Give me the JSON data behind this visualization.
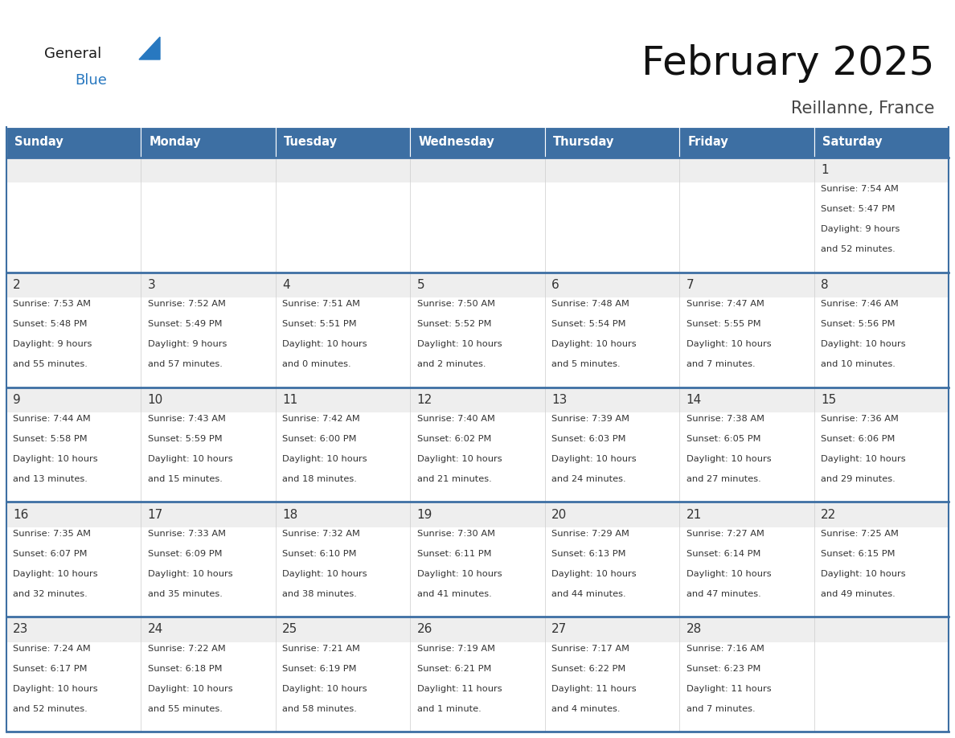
{
  "title": "February 2025",
  "subtitle": "Reillanne, France",
  "header_bg_color": "#3d6fa3",
  "header_text_color": "#ffffff",
  "cell_bg_number": "#eeeeee",
  "cell_bg_text": "#ffffff",
  "row_separator_color": "#3d6fa3",
  "col_separator_color": "#cccccc",
  "text_color": "#333333",
  "days_of_week": [
    "Sunday",
    "Monday",
    "Tuesday",
    "Wednesday",
    "Thursday",
    "Friday",
    "Saturday"
  ],
  "logo_general_color": "#1a1a1a",
  "logo_blue_color": "#2878c0",
  "calendar_data": [
    [
      null,
      null,
      null,
      null,
      null,
      null,
      {
        "day": 1,
        "sunrise": "7:54 AM",
        "sunset": "5:47 PM",
        "daylight": "9 hours and 52 minutes."
      }
    ],
    [
      {
        "day": 2,
        "sunrise": "7:53 AM",
        "sunset": "5:48 PM",
        "daylight": "9 hours and 55 minutes."
      },
      {
        "day": 3,
        "sunrise": "7:52 AM",
        "sunset": "5:49 PM",
        "daylight": "9 hours and 57 minutes."
      },
      {
        "day": 4,
        "sunrise": "7:51 AM",
        "sunset": "5:51 PM",
        "daylight": "10 hours and 0 minutes."
      },
      {
        "day": 5,
        "sunrise": "7:50 AM",
        "sunset": "5:52 PM",
        "daylight": "10 hours and 2 minutes."
      },
      {
        "day": 6,
        "sunrise": "7:48 AM",
        "sunset": "5:54 PM",
        "daylight": "10 hours and 5 minutes."
      },
      {
        "day": 7,
        "sunrise": "7:47 AM",
        "sunset": "5:55 PM",
        "daylight": "10 hours and 7 minutes."
      },
      {
        "day": 8,
        "sunrise": "7:46 AM",
        "sunset": "5:56 PM",
        "daylight": "10 hours and 10 minutes."
      }
    ],
    [
      {
        "day": 9,
        "sunrise": "7:44 AM",
        "sunset": "5:58 PM",
        "daylight": "10 hours and 13 minutes."
      },
      {
        "day": 10,
        "sunrise": "7:43 AM",
        "sunset": "5:59 PM",
        "daylight": "10 hours and 15 minutes."
      },
      {
        "day": 11,
        "sunrise": "7:42 AM",
        "sunset": "6:00 PM",
        "daylight": "10 hours and 18 minutes."
      },
      {
        "day": 12,
        "sunrise": "7:40 AM",
        "sunset": "6:02 PM",
        "daylight": "10 hours and 21 minutes."
      },
      {
        "day": 13,
        "sunrise": "7:39 AM",
        "sunset": "6:03 PM",
        "daylight": "10 hours and 24 minutes."
      },
      {
        "day": 14,
        "sunrise": "7:38 AM",
        "sunset": "6:05 PM",
        "daylight": "10 hours and 27 minutes."
      },
      {
        "day": 15,
        "sunrise": "7:36 AM",
        "sunset": "6:06 PM",
        "daylight": "10 hours and 29 minutes."
      }
    ],
    [
      {
        "day": 16,
        "sunrise": "7:35 AM",
        "sunset": "6:07 PM",
        "daylight": "10 hours and 32 minutes."
      },
      {
        "day": 17,
        "sunrise": "7:33 AM",
        "sunset": "6:09 PM",
        "daylight": "10 hours and 35 minutes."
      },
      {
        "day": 18,
        "sunrise": "7:32 AM",
        "sunset": "6:10 PM",
        "daylight": "10 hours and 38 minutes."
      },
      {
        "day": 19,
        "sunrise": "7:30 AM",
        "sunset": "6:11 PM",
        "daylight": "10 hours and 41 minutes."
      },
      {
        "day": 20,
        "sunrise": "7:29 AM",
        "sunset": "6:13 PM",
        "daylight": "10 hours and 44 minutes."
      },
      {
        "day": 21,
        "sunrise": "7:27 AM",
        "sunset": "6:14 PM",
        "daylight": "10 hours and 47 minutes."
      },
      {
        "day": 22,
        "sunrise": "7:25 AM",
        "sunset": "6:15 PM",
        "daylight": "10 hours and 49 minutes."
      }
    ],
    [
      {
        "day": 23,
        "sunrise": "7:24 AM",
        "sunset": "6:17 PM",
        "daylight": "10 hours and 52 minutes."
      },
      {
        "day": 24,
        "sunrise": "7:22 AM",
        "sunset": "6:18 PM",
        "daylight": "10 hours and 55 minutes."
      },
      {
        "day": 25,
        "sunrise": "7:21 AM",
        "sunset": "6:19 PM",
        "daylight": "10 hours and 58 minutes."
      },
      {
        "day": 26,
        "sunrise": "7:19 AM",
        "sunset": "6:21 PM",
        "daylight": "11 hours and 1 minute."
      },
      {
        "day": 27,
        "sunrise": "7:17 AM",
        "sunset": "6:22 PM",
        "daylight": "11 hours and 4 minutes."
      },
      {
        "day": 28,
        "sunrise": "7:16 AM",
        "sunset": "6:23 PM",
        "daylight": "11 hours and 7 minutes."
      },
      null
    ]
  ]
}
